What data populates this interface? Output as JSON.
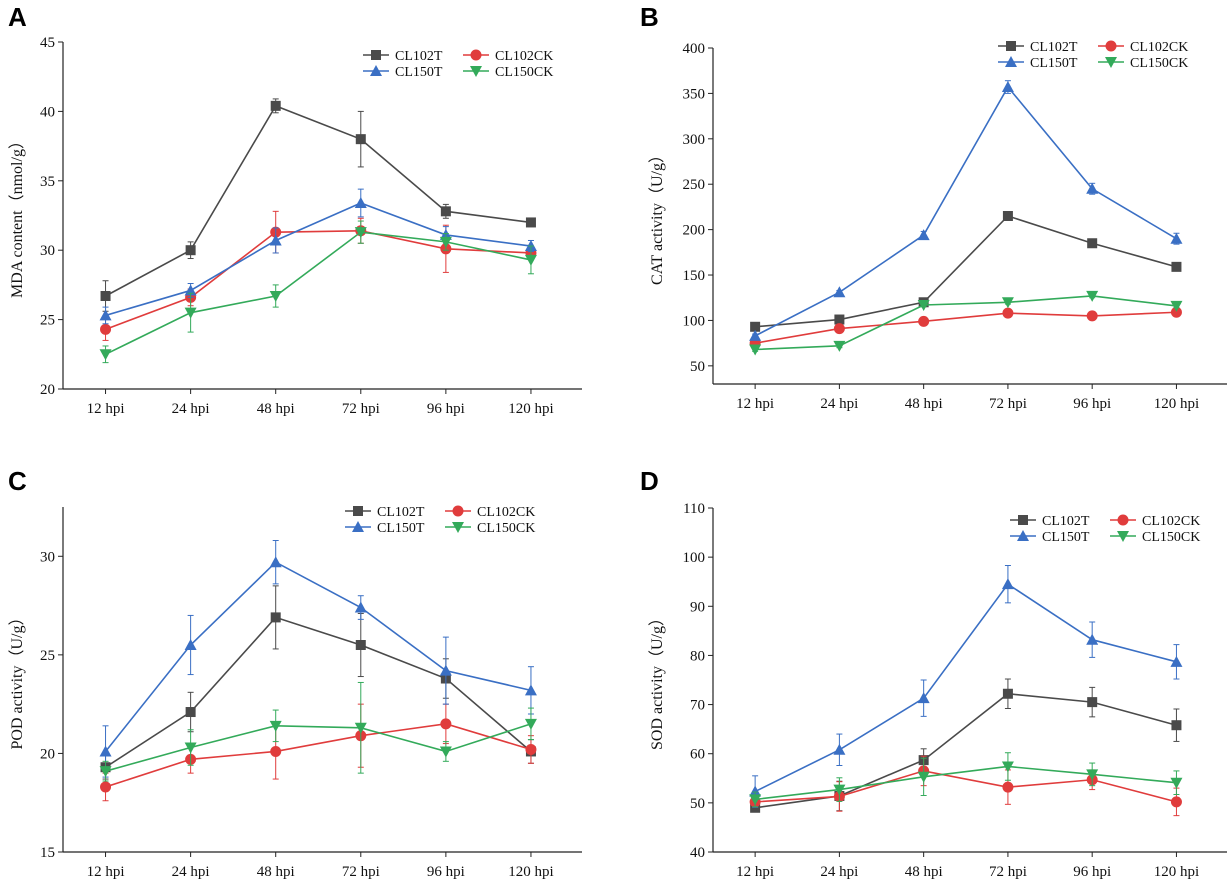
{
  "colors": {
    "CL102T": "#4a4a4a",
    "CL102CK": "#e03c3c",
    "CL150T": "#3a6fc4",
    "CL150CK": "#33aa5a"
  },
  "chart_data": [
    {
      "panel": "A",
      "type": "line",
      "categories": [
        "12 hpi",
        "24 hpi",
        "48 hpi",
        "72 hpi",
        "96 hpi",
        "120 hpi"
      ],
      "ylabel": "MDA content（nmol/g）",
      "ylim": [
        20,
        45
      ],
      "yticks": [
        20,
        25,
        30,
        35,
        40,
        45
      ],
      "series": [
        {
          "name": "CL102T",
          "marker": "square",
          "values": [
            26.7,
            30.0,
            40.4,
            38.0,
            32.8,
            32.0
          ],
          "errors": [
            1.1,
            0.6,
            0.5,
            2.0,
            0.5,
            0.3
          ]
        },
        {
          "name": "CL102CK",
          "marker": "circle",
          "values": [
            24.3,
            26.6,
            31.3,
            31.4,
            30.1,
            29.8
          ],
          "errors": [
            0.8,
            0.6,
            1.5,
            0.9,
            1.7,
            0.5
          ]
        },
        {
          "name": "CL150T",
          "marker": "triangle",
          "values": [
            25.3,
            27.1,
            30.7,
            33.4,
            31.1,
            30.3
          ],
          "errors": [
            0.6,
            0.5,
            0.9,
            1.0,
            0.6,
            0.4
          ]
        },
        {
          "name": "CL150CK",
          "marker": "tri-down",
          "values": [
            22.5,
            25.5,
            26.7,
            31.3,
            30.6,
            29.3
          ],
          "errors": [
            0.6,
            1.4,
            0.8,
            0.8,
            0.6,
            1.0
          ]
        }
      ]
    },
    {
      "panel": "B",
      "type": "line",
      "categories": [
        "12 hpi",
        "24 hpi",
        "48 hpi",
        "72 hpi",
        "96 hpi",
        "120 hpi"
      ],
      "ylabel": "CAT activity（U/g）",
      "ylim": [
        30,
        400
      ],
      "yticks": [
        50,
        100,
        150,
        200,
        250,
        300,
        350,
        400
      ],
      "series": [
        {
          "name": "CL102T",
          "marker": "square",
          "values": [
            93,
            101,
            120,
            215,
            185,
            159
          ],
          "errors": [
            2,
            2,
            2,
            3,
            3,
            3
          ]
        },
        {
          "name": "CL102CK",
          "marker": "circle",
          "values": [
            75,
            91,
            99,
            108,
            105,
            109
          ],
          "errors": [
            2,
            2,
            2,
            2,
            2,
            2
          ]
        },
        {
          "name": "CL150T",
          "marker": "triangle",
          "values": [
            83,
            131,
            194,
            357,
            245,
            190
          ],
          "errors": [
            2,
            2,
            4,
            7,
            6,
            6
          ]
        },
        {
          "name": "CL150CK",
          "marker": "tri-down",
          "values": [
            68,
            72,
            117,
            120,
            127,
            116
          ],
          "errors": [
            2,
            2,
            2,
            2,
            2,
            2
          ]
        }
      ]
    },
    {
      "panel": "C",
      "type": "line",
      "categories": [
        "12 hpi",
        "24 hpi",
        "48 hpi",
        "72 hpi",
        "96 hpi",
        "120 hpi"
      ],
      "ylabel": "POD activity（U/g）",
      "ylim": [
        15,
        32.5
      ],
      "yticks": [
        15,
        20,
        25,
        30
      ],
      "series": [
        {
          "name": "CL102T",
          "marker": "square",
          "values": [
            19.3,
            22.1,
            26.9,
            25.5,
            23.8,
            20.1
          ],
          "errors": [
            0.6,
            1.0,
            1.6,
            1.6,
            1.0,
            0.6
          ]
        },
        {
          "name": "CL102CK",
          "marker": "circle",
          "values": [
            18.3,
            19.7,
            20.1,
            20.9,
            21.5,
            20.2
          ],
          "errors": [
            0.7,
            0.7,
            1.4,
            1.6,
            1.0,
            0.7
          ]
        },
        {
          "name": "CL150T",
          "marker": "triangle",
          "values": [
            20.1,
            25.5,
            29.7,
            27.4,
            24.2,
            23.2
          ],
          "errors": [
            1.3,
            1.5,
            1.1,
            0.6,
            1.7,
            1.2
          ]
        },
        {
          "name": "CL150CK",
          "marker": "tri-down",
          "values": [
            19.1,
            20.3,
            21.4,
            21.3,
            20.1,
            21.5
          ],
          "errors": [
            0.5,
            0.9,
            0.8,
            2.3,
            0.5,
            0.8
          ]
        }
      ]
    },
    {
      "panel": "D",
      "type": "line",
      "categories": [
        "12 hpi",
        "24 hpi",
        "48 hpi",
        "72 hpi",
        "96 hpi",
        "120 hpi"
      ],
      "ylabel": "SOD activity（U/g）",
      "ylim": [
        40,
        110
      ],
      "yticks": [
        40,
        50,
        60,
        70,
        80,
        90,
        100,
        110
      ],
      "series": [
        {
          "name": "CL102T",
          "marker": "square",
          "values": [
            49.0,
            51.4,
            58.7,
            72.2,
            70.5,
            65.8
          ],
          "errors": [
            0.8,
            3.0,
            2.3,
            3.0,
            3.0,
            3.3
          ]
        },
        {
          "name": "CL102CK",
          "marker": "circle",
          "values": [
            50.2,
            51.3,
            56.5,
            53.2,
            54.7,
            50.2
          ],
          "errors": [
            1.0,
            3.0,
            3.0,
            3.5,
            2.0,
            2.8
          ]
        },
        {
          "name": "CL150T",
          "marker": "triangle",
          "values": [
            52.3,
            60.8,
            71.3,
            94.5,
            83.2,
            78.7
          ],
          "errors": [
            3.2,
            3.2,
            3.7,
            3.8,
            3.6,
            3.5
          ]
        },
        {
          "name": "CL150CK",
          "marker": "tri-down",
          "values": [
            50.7,
            52.7,
            55.3,
            57.4,
            55.8,
            54.1
          ],
          "errors": [
            1.5,
            2.4,
            3.8,
            2.8,
            2.3,
            2.4
          ]
        }
      ]
    }
  ]
}
